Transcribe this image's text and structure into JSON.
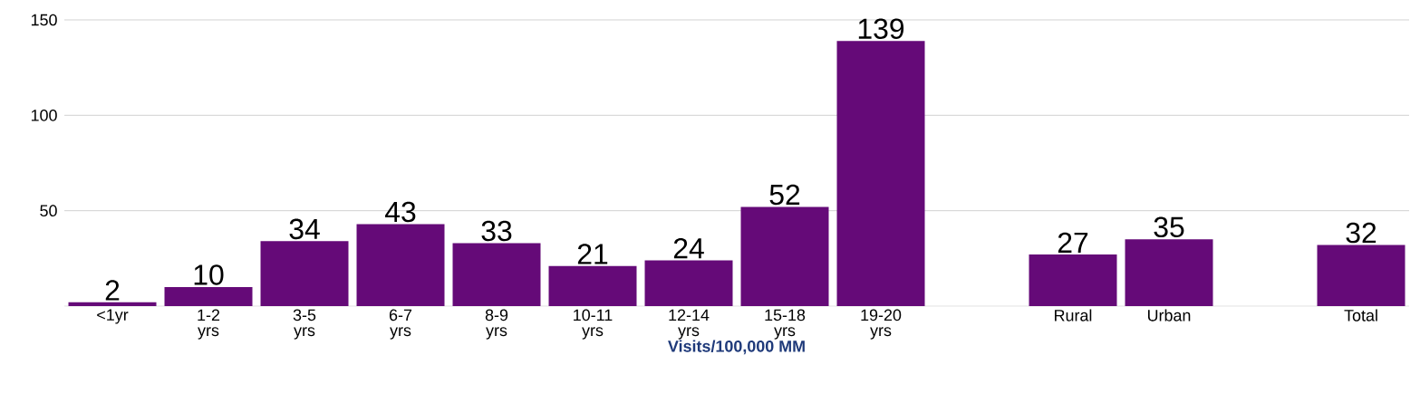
{
  "chart_data": {
    "type": "bar",
    "xlabel": "Visits/100,000 MM",
    "categories": [
      "<1yr",
      "1-2 yrs",
      "3-5 yrs",
      "6-7 yrs",
      "8-9 yrs",
      "10-11 yrs",
      "12-14 yrs",
      "15-18 yrs",
      "19-20 yrs",
      null,
      "Rural",
      "Urban",
      null,
      "Total"
    ],
    "values": [
      2,
      10,
      34,
      43,
      33,
      21,
      24,
      52,
      139,
      null,
      27,
      35,
      null,
      32
    ],
    "color": "#650a78",
    "ylim": [
      0,
      150
    ],
    "yticks": [
      50,
      100,
      150
    ],
    "grid": "y",
    "data_labels": true
  }
}
